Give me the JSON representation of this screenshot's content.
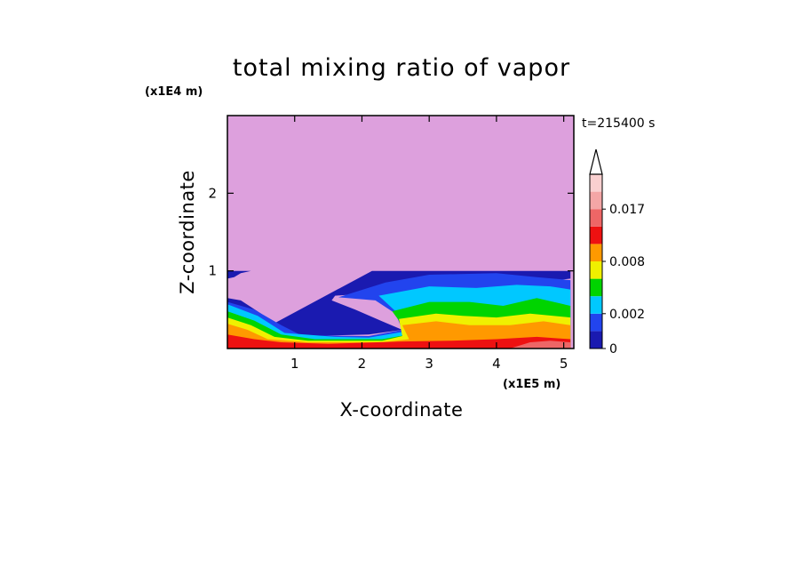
{
  "chart_data": {
    "type": "contour",
    "title": "total mixing ratio of vapor",
    "time_label": "t=215400 s",
    "xlabel": "X-coordinate",
    "ylabel": "Z-coordinate",
    "x_unit_label": "(x1E5 m)",
    "y_unit_label": "(x1E4 m)",
    "xlim": [
      0,
      5.15
    ],
    "ylim": [
      0,
      3.0
    ],
    "x_ticks": [
      "1",
      "2",
      "3",
      "4",
      "5"
    ],
    "y_ticks": [
      "1",
      "2"
    ],
    "background_color": "#dda0dd",
    "levels": [
      {
        "from": 0,
        "to": 0.001,
        "color": "#1a1ab0"
      },
      {
        "from": 0.001,
        "to": 0.002,
        "color": "#2244ee"
      },
      {
        "from": 0.002,
        "to": 0.004,
        "color": "#00c8ff"
      },
      {
        "from": 0.004,
        "to": 0.006,
        "color": "#00d400"
      },
      {
        "from": 0.006,
        "to": 0.008,
        "color": "#f0f000"
      },
      {
        "from": 0.008,
        "to": 0.011,
        "color": "#ff9900"
      },
      {
        "from": 0.011,
        "to": 0.014,
        "color": "#ee1111"
      },
      {
        "from": 0.014,
        "to": 0.017,
        "color": "#ee6666"
      },
      {
        "from": 0.017,
        "to": 0.02,
        "color": "#f4a6a6"
      },
      {
        "from": 0.02,
        "to": 0.023,
        "color": "#fad0d0"
      }
    ],
    "colorbar_labels": [
      "0.017",
      "0.008",
      "0.002",
      "0"
    ],
    "colorbar_label_levels": [
      0.017,
      0.008,
      0.002,
      0
    ],
    "colorbar_extend": "max",
    "regions": [
      {
        "level": 0,
        "points": [
          [
            2.15,
            1.0
          ],
          [
            5.1,
            1.0
          ],
          [
            5.1,
            0.9
          ],
          [
            4.6,
            0.85
          ],
          [
            4.0,
            0.82
          ],
          [
            3.0,
            0.8
          ],
          [
            2.4,
            0.78
          ],
          [
            1.95,
            0.7
          ],
          [
            1.6,
            0.68
          ],
          [
            1.55,
            0.62
          ],
          [
            1.9,
            0.5
          ],
          [
            2.3,
            0.35
          ],
          [
            2.6,
            0.24
          ],
          [
            2.1,
            0.18
          ],
          [
            1.2,
            0.16
          ],
          [
            0.9,
            0.2
          ],
          [
            0.5,
            0.45
          ],
          [
            0.2,
            0.62
          ],
          [
            0,
            0.65
          ],
          [
            0,
            0
          ]
        ]
      },
      {
        "level": 0,
        "points": [
          [
            0,
            1.0
          ],
          [
            0.35,
            1.0
          ],
          [
            0.2,
            0.97
          ],
          [
            0.1,
            0.92
          ],
          [
            0,
            0.9
          ]
        ]
      },
      {
        "level": 1,
        "points": [
          [
            2.35,
            0.85
          ],
          [
            3.0,
            0.95
          ],
          [
            4.0,
            0.97
          ],
          [
            4.6,
            0.92
          ],
          [
            5.1,
            0.88
          ],
          [
            5.1,
            0.0
          ],
          [
            0,
            0
          ],
          [
            0,
            0.6
          ],
          [
            0.4,
            0.5
          ],
          [
            0.8,
            0.3
          ],
          [
            1.1,
            0.17
          ],
          [
            2.1,
            0.16
          ],
          [
            2.6,
            0.24
          ],
          [
            2.5,
            0.45
          ],
          [
            2.2,
            0.62
          ],
          [
            1.65,
            0.66
          ]
        ]
      },
      {
        "level": 2,
        "points": [
          [
            2.25,
            0.68
          ],
          [
            3.0,
            0.8
          ],
          [
            3.7,
            0.78
          ],
          [
            4.3,
            0.82
          ],
          [
            4.8,
            0.8
          ],
          [
            5.1,
            0.76
          ],
          [
            5.1,
            0
          ],
          [
            0,
            0
          ],
          [
            0,
            0.57
          ],
          [
            0.45,
            0.42
          ],
          [
            0.85,
            0.2
          ],
          [
            1.6,
            0.15
          ],
          [
            2.1,
            0.14
          ],
          [
            2.65,
            0.22
          ],
          [
            2.6,
            0.4
          ]
        ]
      },
      {
        "level": 3,
        "points": [
          [
            2.45,
            0.48
          ],
          [
            3.0,
            0.6
          ],
          [
            3.6,
            0.6
          ],
          [
            4.1,
            0.55
          ],
          [
            4.6,
            0.65
          ],
          [
            5.1,
            0.55
          ],
          [
            5.1,
            0
          ],
          [
            0,
            0
          ],
          [
            0,
            0.48
          ],
          [
            0.4,
            0.36
          ],
          [
            0.8,
            0.18
          ],
          [
            1.3,
            0.12
          ],
          [
            2.3,
            0.12
          ],
          [
            2.7,
            0.18
          ]
        ]
      },
      {
        "level": 4,
        "points": [
          [
            2.55,
            0.38
          ],
          [
            3.1,
            0.45
          ],
          [
            3.5,
            0.42
          ],
          [
            4.0,
            0.4
          ],
          [
            4.5,
            0.45
          ],
          [
            5.1,
            0.4
          ],
          [
            5.1,
            0
          ],
          [
            0,
            0
          ],
          [
            0,
            0.4
          ],
          [
            0.35,
            0.3
          ],
          [
            0.7,
            0.15
          ],
          [
            1.2,
            0.1
          ],
          [
            2.3,
            0.1
          ],
          [
            2.6,
            0.16
          ]
        ]
      },
      {
        "level": 5,
        "points": [
          [
            2.6,
            0.3
          ],
          [
            3.1,
            0.35
          ],
          [
            3.6,
            0.3
          ],
          [
            4.2,
            0.3
          ],
          [
            4.7,
            0.35
          ],
          [
            5.1,
            0.3
          ],
          [
            5.1,
            0
          ],
          [
            0,
            0
          ],
          [
            0,
            0.32
          ],
          [
            0.3,
            0.24
          ],
          [
            0.6,
            0.12
          ],
          [
            1.2,
            0.08
          ],
          [
            2.3,
            0.08
          ],
          [
            2.7,
            0.12
          ]
        ]
      },
      {
        "level": 6,
        "points": [
          [
            0,
            0
          ],
          [
            5.1,
            0
          ],
          [
            5.1,
            0.12
          ],
          [
            4.6,
            0.15
          ],
          [
            4.0,
            0.12
          ],
          [
            3.3,
            0.1
          ],
          [
            2.6,
            0.09
          ],
          [
            1.5,
            0.06
          ],
          [
            0.8,
            0.08
          ],
          [
            0.4,
            0.12
          ],
          [
            0,
            0.18
          ]
        ]
      },
      {
        "level": 7,
        "points": [
          [
            4.2,
            0
          ],
          [
            5.1,
            0
          ],
          [
            5.1,
            0.08
          ],
          [
            4.8,
            0.1
          ],
          [
            4.5,
            0.08
          ]
        ]
      }
    ]
  }
}
